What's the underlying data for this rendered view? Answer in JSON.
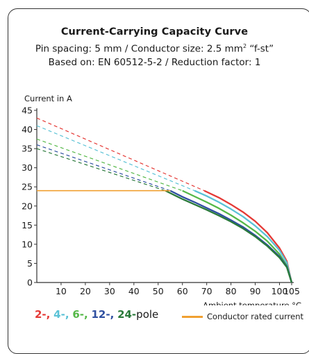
{
  "title": "Current-Carrying Capacity Curve",
  "subtitle_pin_prefix": "Pin spacing: 5 mm / Conductor size: 2.5 mm",
  "subtitle_pin_sup": "2",
  "subtitle_pin_suffix": " “f-st”",
  "subtitle_basis": "Based on: EN 60512-5-2 / Reduction factor: 1",
  "legend": {
    "pole_items": [
      {
        "label": "2-,",
        "color": "#e53935"
      },
      {
        "label": "4-,",
        "color": "#5bc2d6"
      },
      {
        "label": "6-,",
        "color": "#55b848"
      },
      {
        "label": "12-,",
        "color": "#2e4fa0"
      },
      {
        "label": "24-",
        "color": "#2a7a3a"
      }
    ],
    "pole_suffix": "pole",
    "rated_label": "Conductor rated current",
    "rated_color": "#f0a030"
  },
  "chart_data": {
    "type": "line",
    "ylabel": "Current in A",
    "xlabel": "Ambient temperature °C",
    "xlim": [
      0,
      105
    ],
    "ylim": [
      0,
      45
    ],
    "x_ticks": [
      10,
      20,
      30,
      40,
      50,
      60,
      70,
      80,
      90,
      100,
      105
    ],
    "y_ticks": [
      0,
      5,
      10,
      15,
      20,
      25,
      30,
      35,
      40,
      45
    ],
    "series": [
      {
        "name": "2-pole",
        "color": "#e53935",
        "dashed": [
          [
            0,
            43
          ],
          [
            69,
            24
          ]
        ],
        "solid": [
          [
            69,
            24
          ],
          [
            75,
            22.2
          ],
          [
            80,
            20.4
          ],
          [
            85,
            18.4
          ],
          [
            90,
            16
          ],
          [
            95,
            13
          ],
          [
            100,
            9
          ],
          [
            103,
            5.6
          ],
          [
            105,
            0
          ]
        ]
      },
      {
        "name": "4-pole",
        "color": "#5bc2d6",
        "dashed": [
          [
            0,
            41
          ],
          [
            65,
            24
          ]
        ],
        "solid": [
          [
            65,
            24
          ],
          [
            70,
            22.6
          ],
          [
            75,
            21
          ],
          [
            80,
            19.2
          ],
          [
            85,
            17.2
          ],
          [
            90,
            14.8
          ],
          [
            95,
            12
          ],
          [
            100,
            8.4
          ],
          [
            103,
            5.2
          ],
          [
            105,
            0
          ]
        ]
      },
      {
        "name": "6-pole",
        "color": "#55b848",
        "dashed": [
          [
            0,
            37.5
          ],
          [
            60,
            24
          ]
        ],
        "solid": [
          [
            60,
            24
          ],
          [
            65,
            22.5
          ],
          [
            70,
            21
          ],
          [
            75,
            19.4
          ],
          [
            80,
            17.6
          ],
          [
            85,
            15.6
          ],
          [
            90,
            13.4
          ],
          [
            95,
            10.8
          ],
          [
            100,
            7.4
          ],
          [
            103,
            4.4
          ],
          [
            105,
            0
          ]
        ]
      },
      {
        "name": "12-pole",
        "color": "#2e4fa0",
        "dashed": [
          [
            0,
            36
          ],
          [
            55,
            24
          ]
        ],
        "solid": [
          [
            55,
            24
          ],
          [
            60,
            22.4
          ],
          [
            65,
            21
          ],
          [
            70,
            19.5
          ],
          [
            75,
            18
          ],
          [
            80,
            16.3
          ],
          [
            85,
            14.5
          ],
          [
            90,
            12.3
          ],
          [
            95,
            9.8
          ],
          [
            100,
            6.8
          ],
          [
            103,
            4.2
          ],
          [
            105,
            0
          ]
        ]
      },
      {
        "name": "24-pole",
        "color": "#2a7a3a",
        "dashed": [
          [
            0,
            35
          ],
          [
            53,
            24
          ]
        ],
        "solid": [
          [
            53,
            24
          ],
          [
            60,
            21.8
          ],
          [
            65,
            20.4
          ],
          [
            70,
            19
          ],
          [
            75,
            17.5
          ],
          [
            80,
            15.9
          ],
          [
            85,
            14.1
          ],
          [
            90,
            12
          ],
          [
            95,
            9.5
          ],
          [
            100,
            6.5
          ],
          [
            103,
            4
          ],
          [
            105,
            0
          ]
        ]
      },
      {
        "name": "Conductor rated current",
        "color": "#f0a030",
        "solid": [
          [
            0,
            24
          ],
          [
            55,
            24
          ]
        ]
      }
    ]
  }
}
